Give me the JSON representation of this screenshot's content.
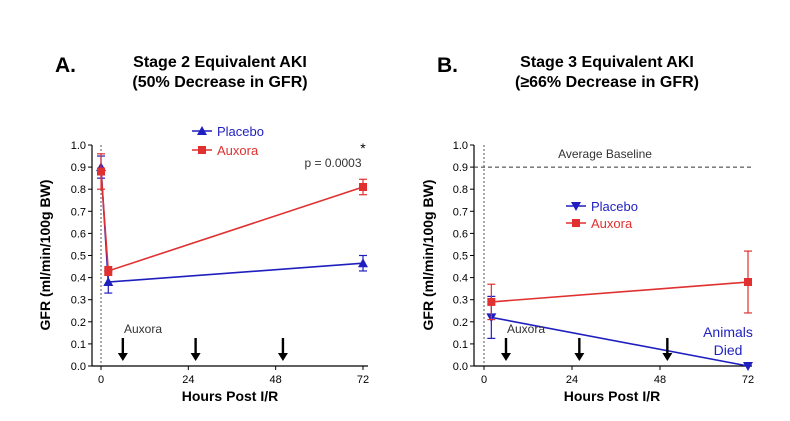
{
  "colors": {
    "placebo": "#1f1fbf",
    "auxora": "#e03030"
  },
  "chart_data": [
    {
      "panel": "A.",
      "type": "line",
      "title": [
        "Stage 2 Equivalent AKI",
        "(50% Decrease in GFR)"
      ],
      "xlabel": "Hours Post I/R",
      "ylabel": "GFR (ml/min/100g BW)",
      "xlim": [
        0,
        72
      ],
      "ylim": [
        0,
        1.0
      ],
      "xticks": [
        0,
        24,
        48,
        72
      ],
      "yticks": [
        "0.0",
        "0.1",
        "0.2",
        "0.3",
        "0.4",
        "0.5",
        "0.6",
        "0.7",
        "0.8",
        "0.9",
        "1.0"
      ],
      "series": [
        {
          "name": "Placebo",
          "color": "#1f1fbf",
          "marker": "triangle-up",
          "x": [
            0,
            2,
            72
          ],
          "y": [
            0.9,
            0.38,
            0.465
          ],
          "err": [
            0.05,
            0.05,
            0.035
          ]
        },
        {
          "name": "Auxora",
          "color": "#e03030",
          "marker": "square",
          "x": [
            0,
            2,
            72
          ],
          "y": [
            0.88,
            0.43,
            0.81
          ],
          "err": [
            0.08,
            0.02,
            0.035
          ]
        }
      ],
      "dosing_label": "Auxora",
      "dosing_times": [
        6,
        26,
        50
      ],
      "significance": {
        "star": "*",
        "p_text": "p = 0.0003"
      }
    },
    {
      "panel": "B.",
      "type": "line",
      "title": [
        "Stage 3 Equivalent AKI",
        "(≥66% Decrease in GFR)"
      ],
      "xlabel": "Hours Post I/R",
      "ylabel": "GFR (ml/min/100g BW)",
      "xlim": [
        0,
        72
      ],
      "ylim": [
        0,
        1.0
      ],
      "xticks": [
        0,
        24,
        48,
        72
      ],
      "yticks": [
        "0.0",
        "0.1",
        "0.2",
        "0.3",
        "0.4",
        "0.5",
        "0.6",
        "0.7",
        "0.8",
        "0.9",
        "1.0"
      ],
      "baseline": {
        "label": "Average Baseline",
        "value": 0.9
      },
      "series": [
        {
          "name": "Placebo",
          "color": "#1f1fbf",
          "marker": "triangle-down",
          "x": [
            2,
            72
          ],
          "y": [
            0.22,
            0.0
          ],
          "err": [
            0.095,
            0.0
          ]
        },
        {
          "name": "Auxora",
          "color": "#e03030",
          "marker": "square",
          "x": [
            2,
            72
          ],
          "y": [
            0.29,
            0.38
          ],
          "err": [
            0.08,
            0.14
          ]
        }
      ],
      "dosing_label": "Auxora",
      "dosing_times": [
        6,
        26,
        50
      ],
      "annotation": [
        "Animals",
        "Died"
      ]
    }
  ]
}
